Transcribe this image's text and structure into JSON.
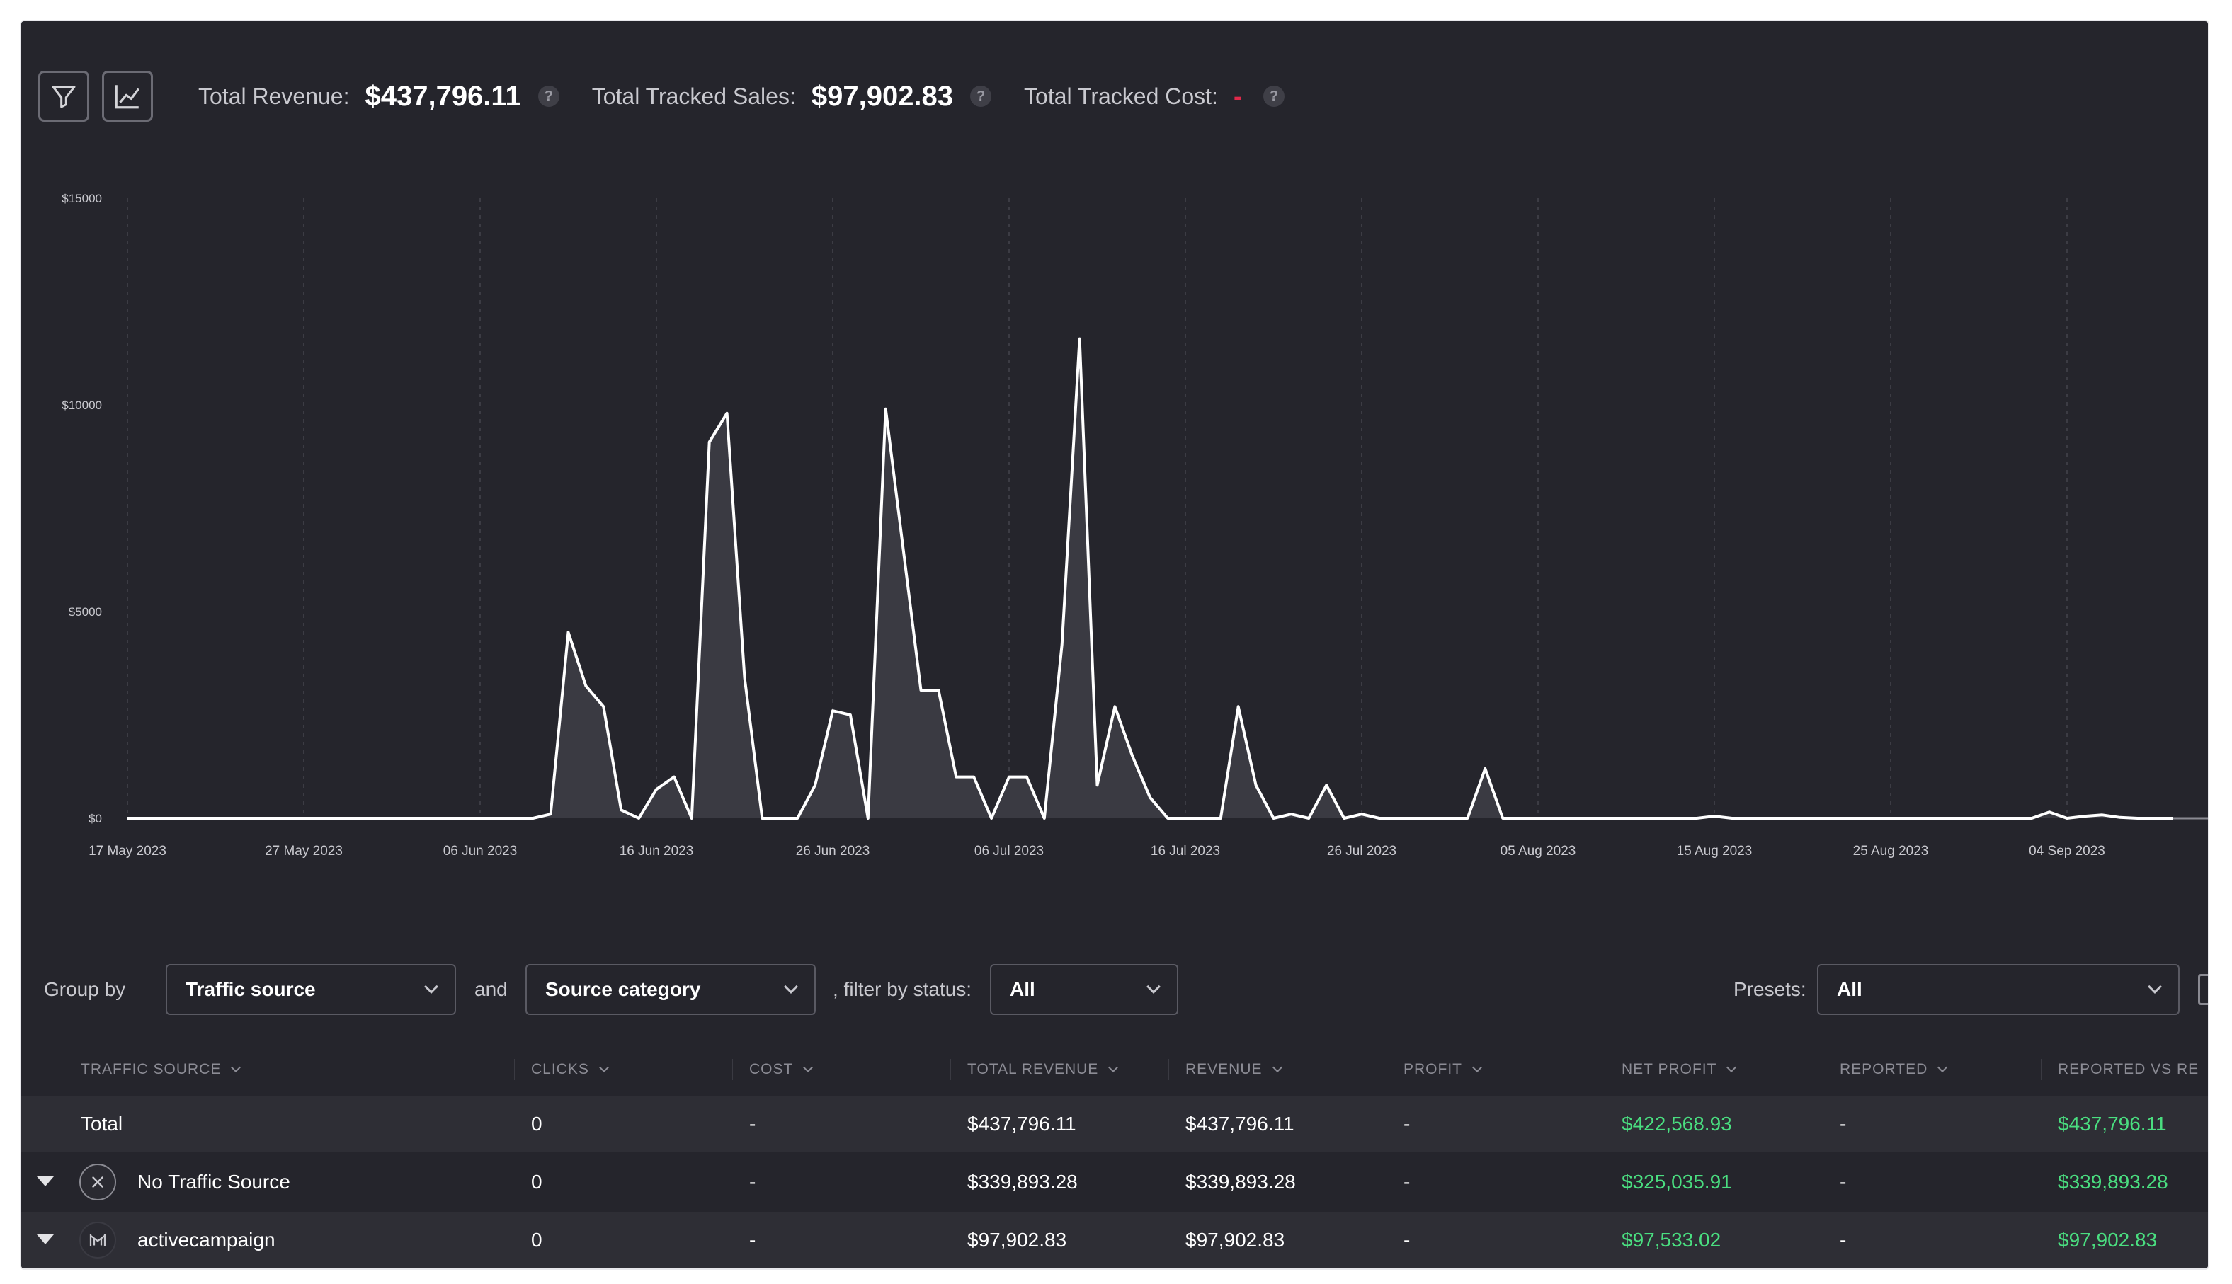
{
  "summary": {
    "total_revenue_label": "Total Revenue:",
    "total_revenue_value": "$437,796.11",
    "tracked_sales_label": "Total Tracked Sales:",
    "tracked_sales_value": "$97,902.83",
    "tracked_cost_label": "Total Tracked Cost:",
    "tracked_cost_value": "-",
    "help_glyph": "?",
    "icons": [
      "filter-icon",
      "line-chart-icon",
      "help-icon"
    ]
  },
  "chart_data": {
    "type": "area",
    "y_ticks": [
      "$15000",
      "$10000",
      "$5000",
      "$0"
    ],
    "y_tick_values": [
      15000,
      10000,
      5000,
      0
    ],
    "ylim": [
      0,
      15000
    ],
    "x_ticks": [
      "17 May 2023",
      "27 May 2023",
      "06 Jun 2023",
      "16 Jun 2023",
      "26 Jun 2023",
      "06 Jul 2023",
      "16 Jul 2023",
      "26 Jul 2023",
      "05 Aug 2023",
      "15 Aug 2023",
      "25 Aug 2023",
      "04 Sep 2023"
    ],
    "x_start": "2023-05-17",
    "x_end": "2023-09-10",
    "grid": "vertical dashed",
    "line_color": "#ffffff",
    "fill_color": "#3a3a42",
    "points": [
      [
        "2023-05-17",
        0
      ],
      [
        "2023-06-09",
        0
      ],
      [
        "2023-06-10",
        100
      ],
      [
        "2023-06-11",
        4500
      ],
      [
        "2023-06-12",
        3200
      ],
      [
        "2023-06-13",
        2700
      ],
      [
        "2023-06-14",
        200
      ],
      [
        "2023-06-15",
        0
      ],
      [
        "2023-06-16",
        700
      ],
      [
        "2023-06-17",
        1000
      ],
      [
        "2023-06-18",
        0
      ],
      [
        "2023-06-19",
        9100
      ],
      [
        "2023-06-20",
        9800
      ],
      [
        "2023-06-21",
        3400
      ],
      [
        "2023-06-22",
        0
      ],
      [
        "2023-06-24",
        0
      ],
      [
        "2023-06-25",
        800
      ],
      [
        "2023-06-26",
        2600
      ],
      [
        "2023-06-27",
        2500
      ],
      [
        "2023-06-28",
        0
      ],
      [
        "2023-06-29",
        9900
      ],
      [
        "2023-06-30",
        6500
      ],
      [
        "2023-07-01",
        3100
      ],
      [
        "2023-07-02",
        3100
      ],
      [
        "2023-07-03",
        1000
      ],
      [
        "2023-07-04",
        1000
      ],
      [
        "2023-07-05",
        0
      ],
      [
        "2023-07-06",
        1000
      ],
      [
        "2023-07-07",
        1000
      ],
      [
        "2023-07-08",
        0
      ],
      [
        "2023-07-09",
        4200
      ],
      [
        "2023-07-10",
        11600
      ],
      [
        "2023-07-11",
        800
      ],
      [
        "2023-07-12",
        2700
      ],
      [
        "2023-07-13",
        1500
      ],
      [
        "2023-07-14",
        500
      ],
      [
        "2023-07-15",
        0
      ],
      [
        "2023-07-18",
        0
      ],
      [
        "2023-07-19",
        2700
      ],
      [
        "2023-07-20",
        800
      ],
      [
        "2023-07-21",
        0
      ],
      [
        "2023-07-22",
        100
      ],
      [
        "2023-07-23",
        0
      ],
      [
        "2023-07-24",
        800
      ],
      [
        "2023-07-25",
        0
      ],
      [
        "2023-07-26",
        100
      ],
      [
        "2023-07-27",
        0
      ],
      [
        "2023-08-01",
        0
      ],
      [
        "2023-08-02",
        1200
      ],
      [
        "2023-08-03",
        0
      ],
      [
        "2023-08-14",
        0
      ],
      [
        "2023-08-15",
        50
      ],
      [
        "2023-08-16",
        0
      ],
      [
        "2023-09-02",
        0
      ],
      [
        "2023-09-03",
        150
      ],
      [
        "2023-09-04",
        0
      ],
      [
        "2023-09-05",
        50
      ],
      [
        "2023-09-06",
        80
      ],
      [
        "2023-09-07",
        20
      ],
      [
        "2023-09-08",
        0
      ],
      [
        "2023-09-10",
        0
      ]
    ]
  },
  "filters": {
    "group_by_label": "Group by",
    "group_by_value": "Traffic source",
    "and_label": "and",
    "second_group_value": "Source category",
    "status_label": ", filter by status:",
    "status_value": "All",
    "presets_label": "Presets:",
    "presets_value": "All"
  },
  "table": {
    "columns": [
      "TRAFFIC SOURCE",
      "CLICKS",
      "COST",
      "TOTAL REVENUE",
      "REVENUE",
      "PROFIT",
      "NET PROFIT",
      "REPORTED",
      "REPORTED VS RE"
    ],
    "total_row": {
      "label": "Total",
      "clicks": "0",
      "cost": "-",
      "total_revenue": "$437,796.11",
      "revenue": "$437,796.11",
      "profit": "-",
      "net_profit": "$422,568.93",
      "reported": "-",
      "reported_vs": "$437,796.11"
    },
    "rows": [
      {
        "label": "No Traffic Source",
        "icon": "close-circle-icon",
        "clicks": "0",
        "cost": "-",
        "total_revenue": "$339,893.28",
        "revenue": "$339,893.28",
        "profit": "-",
        "net_profit": "$325,035.91",
        "reported": "-",
        "reported_vs": "$339,893.28"
      },
      {
        "label": "activecampaign",
        "icon": "activecampaign-icon",
        "clicks": "0",
        "cost": "-",
        "total_revenue": "$97,902.83",
        "revenue": "$97,902.83",
        "profit": "-",
        "net_profit": "$97,533.02",
        "reported": "-",
        "reported_vs": "$97,902.83"
      }
    ]
  },
  "colors": {
    "background": "#25252c",
    "row_alt": "#2e2e35",
    "positive": "#4ade80",
    "negative": "#e0294a"
  }
}
